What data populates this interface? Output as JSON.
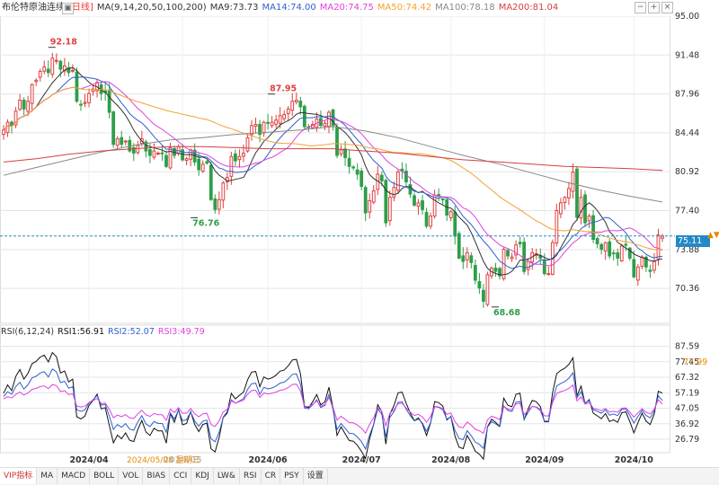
{
  "header": {
    "title": "布伦特原油连续",
    "period": "[日线]",
    "ma_label": "MA(9,14,20,50,100,200)",
    "ma_values": [
      {
        "label": "MA9:73.73",
        "color": "#333333"
      },
      {
        "label": "MA14:74.00",
        "color": "#2f5fcf"
      },
      {
        "label": "MA20:74.75",
        "color": "#e040e0"
      },
      {
        "label": "MA50:74.42",
        "color": "#f5a030"
      },
      {
        "label": "MA100:78.18",
        "color": "#888888"
      },
      {
        "label": "MA200:81.04",
        "color": "#d44040"
      }
    ]
  },
  "rsi_header": {
    "label": "RSI(6,12,24)",
    "values": [
      {
        "label": "RSI1:56.91",
        "color": "#111111"
      },
      {
        "label": "RSI2:52.07",
        "color": "#2f5fcf"
      },
      {
        "label": "RSI3:49.79",
        "color": "#e040e0"
      }
    ]
  },
  "controls": {
    "minus": "−",
    "plus": "+",
    "close": "×"
  },
  "current_price_label": "75.11",
  "current_rsi_label": "77.99",
  "dropdown_icon": "▲▼",
  "cursor_date": "2024/05/08 星期三",
  "tabs": [
    "VIP指标",
    "MA",
    "MACD",
    "BOLL",
    "VOL",
    "BIAS",
    "CCI",
    "KDJ",
    "LW&",
    "RSI",
    "CR",
    "PSY",
    "设置"
  ],
  "colors": {
    "up": "#e04040",
    "down": "#2e9e48",
    "grid": "#e5e5e5",
    "price_line": "#2389c7"
  },
  "chart_data": [
    {
      "type": "candlestick",
      "title": "布伦特原油连续 [日线]",
      "x_ticks": [
        "2024/04",
        "2024/05",
        "2024/06",
        "2024/07",
        "2024/08",
        "2024/09",
        "2024/10"
      ],
      "y_ticks": [
        95.0,
        91.48,
        87.96,
        84.44,
        80.92,
        77.4,
        73.88,
        70.36
      ],
      "ylim": [
        67.2,
        95.0
      ],
      "annotations": [
        {
          "label": "92.18",
          "date": "2024/04/12",
          "value": 92.18,
          "color": "#e04040"
        },
        {
          "label": "87.95",
          "date": "2024/07/04",
          "value": 87.95,
          "color": "#e04040"
        },
        {
          "label": "76.76",
          "date": "2024/06/04",
          "value": 76.76,
          "color": "#2e9e48"
        },
        {
          "label": "68.68",
          "date": "2024/09/10",
          "value": 68.68,
          "color": "#2e9e48"
        }
      ],
      "current_price": 75.11,
      "series_close": [
        84.7,
        85.4,
        85.1,
        86.4,
        87.4,
        86.6,
        87.3,
        88.8,
        89.2,
        90.0,
        90.4,
        89.9,
        91.2,
        91.0,
        90.2,
        90.5,
        89.9,
        90.1,
        87.3,
        87.0,
        87.2,
        88.0,
        88.4,
        89.0,
        88.0,
        88.1,
        86.3,
        83.4,
        83.9,
        83.4,
        83.7,
        82.8,
        82.6,
        83.3,
        83.9,
        82.8,
        82.4,
        82.8,
        82.6,
        82.6,
        81.4,
        83.1,
        82.4,
        83.2,
        82.0,
        82.1,
        82.9,
        81.8,
        81.1,
        81.6,
        81.7,
        78.4,
        77.5,
        78.4,
        79.9,
        80.4,
        82.3,
        81.9,
        82.3,
        82.6,
        84.0,
        85.1,
        85.2,
        84.3,
        85.4,
        85.3,
        85.4,
        85.6,
        86.0,
        86.1,
        86.6,
        87.3,
        87.4,
        86.8,
        85.0,
        84.9,
        85.2,
        85.7,
        85.1,
        85.3,
        86.3,
        85.1,
        82.4,
        82.9,
        82.2,
        81.4,
        81.3,
        80.7,
        79.6,
        77.2,
        78.3,
        79.2,
        80.7,
        80.1,
        76.3,
        78.6,
        79.5,
        80.9,
        81.0,
        80.0,
        78.9,
        77.9,
        78.1,
        77.5,
        76.0,
        76.9,
        78.8,
        78.7,
        78.4,
        77.0,
        77.3,
        75.1,
        73.1,
        72.8,
        73.6,
        72.7,
        71.1,
        70.4,
        69.2,
        71.6,
        72.2,
        71.9,
        71.5,
        73.9,
        73.3,
        73.2,
        74.3,
        74.4,
        71.9,
        72.8,
        73.6,
        73.5,
        73.1,
        71.7,
        71.7,
        74.5,
        77.4,
        78.1,
        78.6,
        79.4,
        80.9,
        76.8,
        78.6,
        76.3,
        76.9,
        74.8,
        74.4,
        73.9,
        74.5,
        73.3,
        73.5,
        73.1,
        74.2,
        74.3,
        73.1,
        71.4,
        72.3,
        73.2,
        72.3,
        71.9,
        72.8,
        75.2,
        75.1
      ],
      "rsi": {
        "y_ticks": [
          87.59,
          77.45,
          67.32,
          57.19,
          47.05,
          36.92,
          26.79
        ],
        "ylim": [
          18.0,
          92.0
        ],
        "series": [
          {
            "name": "RSI1",
            "values": [
              56.9,
              62.3,
              58.6,
              67.9,
              72.3,
              66.1,
              69.9,
              76.2,
              77.7,
              80.5,
              81.8,
              77.3,
              83.5,
              80.7,
              70.1,
              71.4,
              64.3,
              66.1,
              41.5,
              40.1,
              41.9,
              48.9,
              52.1,
              56.3,
              46.6,
              47.4,
              35.8,
              24.4,
              29.5,
              27.1,
              30.9,
              26.1,
              25.3,
              33.1,
              39.1,
              31.5,
              29.2,
              34.0,
              32.2,
              32.2,
              24.2,
              43.6,
              37.9,
              46.2,
              36.2,
              37.1,
              44.9,
              36.3,
              31.8,
              36.4,
              37.3,
              20.6,
              18.5,
              27.8,
              41.1,
              44.7,
              56.8,
              53.2,
              55.5,
              57.6,
              65.7,
              70.7,
              71.1,
              61.1,
              67.5,
              66.1,
              66.9,
              68.7,
              71.3,
              72.0,
              74.8,
              78.6,
              79.0,
              69.6,
              48.2,
              47.5,
              51.3,
              56.0,
              49.3,
              51.2,
              60.8,
              47.3,
              29.3,
              34.9,
              30.3,
              25.9,
              25.5,
              22.8,
              18.9,
              14.1,
              26.9,
              36.3,
              49.4,
              44.7,
              23.6,
              43.2,
              48.9,
              57.1,
              57.6,
              50.3,
              43.9,
              38.9,
              40.7,
              36.8,
              29.2,
              37.5,
              51.4,
              50.7,
              48.4,
              39.4,
              41.7,
              28.8,
              21.6,
              20.6,
              29.3,
              24.6,
              18.9,
              17.0,
              13.8,
              35.0,
              39.9,
              37.8,
              35.2,
              53.6,
              49.0,
              48.0,
              56.2,
              56.9,
              39.6,
              46.7,
              52.2,
              51.3,
              48.1,
              38.2,
              38.2,
              57.1,
              69.7,
              71.8,
              73.2,
              75.7,
              80.0,
              55.2,
              61.5,
              50.1,
              52.7,
              43.8,
              42.1,
              40.2,
              43.6,
              38.3,
              39.5,
              37.8,
              44.1,
              44.7,
              38.3,
              30.9,
              37.6,
              43.9,
              38.6,
              36.4,
              43.5,
              58.2,
              56.9
            ]
          },
          {
            "name": "RSI2",
            "values": [
              54.7,
              57.9,
              56.2,
              61.2,
              64.0,
              59.6,
              62.4,
              66.9,
              68.0,
              70.1,
              71.0,
              67.5,
              72.7,
              70.9,
              63.8,
              64.7,
              60.1,
              61.1,
              46.0,
              45.0,
              46.0,
              50.5,
              52.6,
              55.4,
              49.1,
              49.6,
              42.0,
              33.2,
              36.4,
              34.6,
              37.0,
              33.4,
              32.7,
              38.0,
              42.2,
              36.8,
              35.1,
              38.4,
              37.1,
              37.1,
              31.3,
              44.0,
              40.0,
              45.7,
              38.9,
              39.5,
              44.7,
              38.6,
              35.4,
              38.6,
              39.3,
              27.1,
              25.1,
              31.2,
              40.8,
              43.6,
              52.5,
              50.3,
              51.8,
              53.3,
              59.4,
              63.1,
              63.4,
              56.1,
              60.7,
              59.7,
              60.3,
              61.6,
              63.5,
              64.1,
              66.2,
              69.2,
              69.5,
              62.7,
              47.2,
              46.7,
              49.3,
              52.6,
              47.5,
              48.9,
              56.0,
              46.2,
              33.2,
              37.1,
              33.9,
              30.7,
              30.4,
              28.3,
              25.2,
              20.4,
              29.5,
              36.3,
              46.4,
              43.2,
              28.4,
              41.1,
              44.9,
              50.9,
              51.3,
              46.4,
              42.2,
              38.8,
              40.0,
              37.4,
              32.0,
              37.8,
              48.1,
              47.6,
              46.0,
              39.9,
              41.5,
              32.6,
              27.2,
              26.5,
              32.4,
              29.1,
              24.9,
              23.4,
              20.8,
              34.7,
              38.3,
              36.8,
              35.0,
              48.6,
              45.6,
              44.9,
              51.0,
              51.5,
              39.8,
              44.5,
              48.3,
              47.7,
              45.5,
              38.6,
              38.6,
              52.0,
              61.6,
              63.3,
              64.5,
              66.6,
              70.2,
              53.8,
              57.9,
              50.4,
              52.1,
              46.2,
              45.1,
              43.8,
              46.0,
              42.5,
              43.3,
              42.2,
              46.3,
              46.7,
              42.4,
              37.3,
              41.7,
              45.8,
              42.3,
              40.8,
              45.5,
              55.1,
              52.1
            ]
          },
          {
            "name": "RSI3",
            "values": [
              53.1,
              54.6,
              53.8,
              56.2,
              57.6,
              55.7,
              57.0,
              59.4,
              60.0,
              61.2,
              61.7,
              59.9,
              62.6,
              61.8,
              58.0,
              58.5,
              56.0,
              56.6,
              48.5,
              47.9,
              48.4,
              50.8,
              52.0,
              53.5,
              50.1,
              50.4,
              46.3,
              40.8,
              42.6,
              41.5,
              42.9,
              40.7,
              40.3,
              43.4,
              45.8,
              42.7,
              41.7,
              43.6,
              42.8,
              42.8,
              39.2,
              46.5,
              44.2,
              47.5,
              43.6,
              43.9,
              46.9,
              43.4,
              41.5,
              43.4,
              43.8,
              36.4,
              35.1,
              38.8,
              44.6,
              46.3,
              51.8,
              50.4,
              51.4,
              52.3,
              56.2,
              58.6,
              58.8,
              54.1,
              57.0,
              56.4,
              56.8,
              57.6,
              58.8,
              59.2,
              60.6,
              62.6,
              62.8,
              58.3,
              48.4,
              48.1,
              49.7,
              51.8,
              48.5,
              49.4,
              54.0,
              47.7,
              39.3,
              41.8,
              39.8,
              37.7,
              37.5,
              36.1,
              34.0,
              30.8,
              36.5,
              40.8,
              47.3,
              45.2,
              35.6,
              43.8,
              46.2,
              50.0,
              50.3,
              47.2,
              44.5,
              42.3,
              43.1,
              41.4,
              37.9,
              41.6,
              48.2,
              47.9,
              46.9,
              43.0,
              44.0,
              38.3,
              34.8,
              34.3,
              38.1,
              36.0,
              33.3,
              32.3,
              30.6,
              39.5,
              41.8,
              40.9,
              39.7,
              48.4,
              46.5,
              46.0,
              49.9,
              50.3,
              42.8,
              45.8,
              48.3,
              47.9,
              46.5,
              42.1,
              42.1,
              50.7,
              56.8,
              57.9,
              58.7,
              60.0,
              62.3,
              51.8,
              54.4,
              49.7,
              50.8,
              47.0,
              46.3,
              45.5,
              46.9,
              44.6,
              45.1,
              44.4,
              47.1,
              47.3,
              44.5,
              41.2,
              44.0,
              46.7,
              44.4,
              43.4,
              46.5,
              52.6,
              49.8
            ]
          }
        ]
      }
    }
  ]
}
